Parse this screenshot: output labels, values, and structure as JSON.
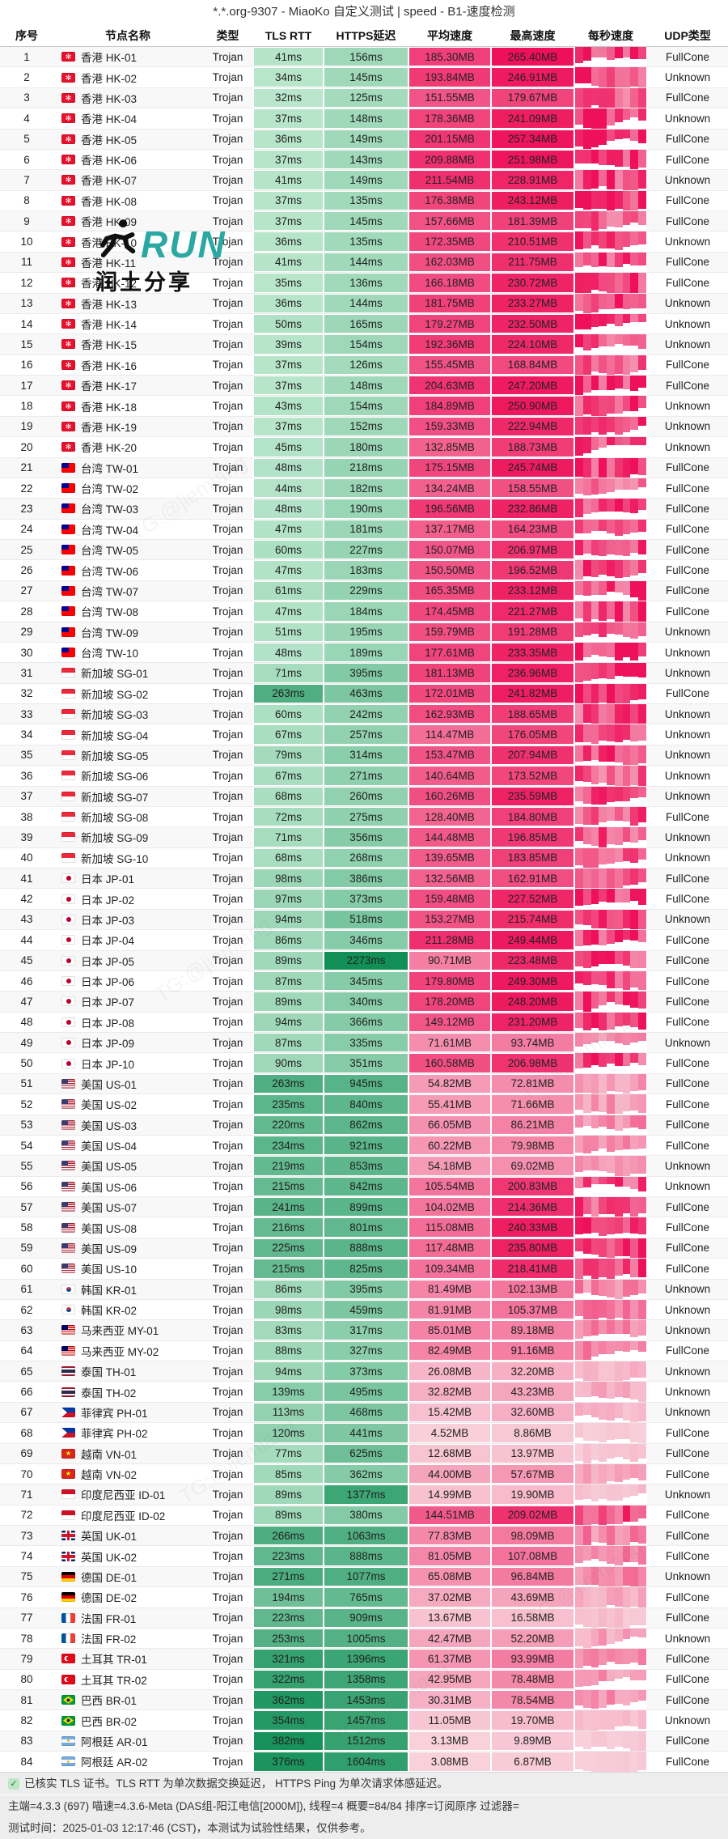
{
  "title": "*.*.org-9307 - MiaoKo 自定义测试 | speed - B1-速度检测",
  "watermark": {
    "run": "RUN",
    "share": "润土分享",
    "diagonal": "TG:@jiemiang"
  },
  "table": {
    "columns": [
      "序号",
      "节点名称",
      "类型",
      "TLS RTT",
      "HTTPS延迟",
      "平均速度",
      "最高速度",
      "每秒速度",
      "UDP类型"
    ],
    "row_fields": [
      "no",
      "flag",
      "name",
      "type",
      "tls",
      "https",
      "avg",
      "max",
      "udp"
    ],
    "rows": [
      [
        1,
        "hk",
        "香港 HK-01",
        "Trojan",
        "41ms",
        "156ms",
        "185.30MB",
        "265.40MB",
        "FullCone"
      ],
      [
        2,
        "hk",
        "香港 HK-02",
        "Trojan",
        "34ms",
        "145ms",
        "193.84MB",
        "246.91MB",
        "Unknown"
      ],
      [
        3,
        "hk",
        "香港 HK-03",
        "Trojan",
        "32ms",
        "125ms",
        "151.55MB",
        "179.67MB",
        "FullCone"
      ],
      [
        4,
        "hk",
        "香港 HK-04",
        "Trojan",
        "37ms",
        "148ms",
        "178.36MB",
        "241.09MB",
        "Unknown"
      ],
      [
        5,
        "hk",
        "香港 HK-05",
        "Trojan",
        "36ms",
        "149ms",
        "201.15MB",
        "257.34MB",
        "FullCone"
      ],
      [
        6,
        "hk",
        "香港 HK-06",
        "Trojan",
        "37ms",
        "143ms",
        "209.88MB",
        "251.98MB",
        "FullCone"
      ],
      [
        7,
        "hk",
        "香港 HK-07",
        "Trojan",
        "41ms",
        "149ms",
        "211.54MB",
        "228.91MB",
        "Unknown"
      ],
      [
        8,
        "hk",
        "香港 HK-08",
        "Trojan",
        "37ms",
        "135ms",
        "176.38MB",
        "243.12MB",
        "FullCone"
      ],
      [
        9,
        "hk",
        "香港 HK-09",
        "Trojan",
        "37ms",
        "145ms",
        "157.66MB",
        "181.39MB",
        "FullCone"
      ],
      [
        10,
        "hk",
        "香港 HK-10",
        "Trojan",
        "36ms",
        "135ms",
        "172.35MB",
        "210.51MB",
        "Unknown"
      ],
      [
        11,
        "hk",
        "香港 HK-11",
        "Trojan",
        "41ms",
        "144ms",
        "162.03MB",
        "211.75MB",
        "FullCone"
      ],
      [
        12,
        "hk",
        "香港 HK-12",
        "Trojan",
        "35ms",
        "136ms",
        "166.18MB",
        "230.72MB",
        "FullCone"
      ],
      [
        13,
        "hk",
        "香港 HK-13",
        "Trojan",
        "36ms",
        "144ms",
        "181.75MB",
        "233.27MB",
        "Unknown"
      ],
      [
        14,
        "hk",
        "香港 HK-14",
        "Trojan",
        "50ms",
        "165ms",
        "179.27MB",
        "232.50MB",
        "Unknown"
      ],
      [
        15,
        "hk",
        "香港 HK-15",
        "Trojan",
        "39ms",
        "154ms",
        "192.36MB",
        "224.10MB",
        "Unknown"
      ],
      [
        16,
        "hk",
        "香港 HK-16",
        "Trojan",
        "37ms",
        "126ms",
        "155.45MB",
        "168.84MB",
        "FullCone"
      ],
      [
        17,
        "hk",
        "香港 HK-17",
        "Trojan",
        "37ms",
        "148ms",
        "204.63MB",
        "247.20MB",
        "FullCone"
      ],
      [
        18,
        "hk",
        "香港 HK-18",
        "Trojan",
        "43ms",
        "154ms",
        "184.89MB",
        "250.90MB",
        "Unknown"
      ],
      [
        19,
        "hk",
        "香港 HK-19",
        "Trojan",
        "37ms",
        "152ms",
        "159.33MB",
        "222.94MB",
        "Unknown"
      ],
      [
        20,
        "hk",
        "香港 HK-20",
        "Trojan",
        "45ms",
        "180ms",
        "132.85MB",
        "188.73MB",
        "Unknown"
      ],
      [
        21,
        "tw",
        "台湾 TW-01",
        "Trojan",
        "48ms",
        "218ms",
        "175.15MB",
        "245.74MB",
        "FullCone"
      ],
      [
        22,
        "tw",
        "台湾 TW-02",
        "Trojan",
        "44ms",
        "182ms",
        "134.24MB",
        "158.55MB",
        "FullCone"
      ],
      [
        23,
        "tw",
        "台湾 TW-03",
        "Trojan",
        "48ms",
        "190ms",
        "196.56MB",
        "232.86MB",
        "FullCone"
      ],
      [
        24,
        "tw",
        "台湾 TW-04",
        "Trojan",
        "47ms",
        "181ms",
        "137.17MB",
        "164.23MB",
        "FullCone"
      ],
      [
        25,
        "tw",
        "台湾 TW-05",
        "Trojan",
        "60ms",
        "227ms",
        "150.07MB",
        "206.97MB",
        "FullCone"
      ],
      [
        26,
        "tw",
        "台湾 TW-06",
        "Trojan",
        "47ms",
        "183ms",
        "150.50MB",
        "196.52MB",
        "FullCone"
      ],
      [
        27,
        "tw",
        "台湾 TW-07",
        "Trojan",
        "61ms",
        "229ms",
        "165.35MB",
        "233.12MB",
        "FullCone"
      ],
      [
        28,
        "tw",
        "台湾 TW-08",
        "Trojan",
        "47ms",
        "184ms",
        "174.45MB",
        "221.27MB",
        "FullCone"
      ],
      [
        29,
        "tw",
        "台湾 TW-09",
        "Trojan",
        "51ms",
        "195ms",
        "159.79MB",
        "191.28MB",
        "Unknown"
      ],
      [
        30,
        "tw",
        "台湾 TW-10",
        "Trojan",
        "48ms",
        "189ms",
        "177.61MB",
        "233.35MB",
        "Unknown"
      ],
      [
        31,
        "sg",
        "新加坡 SG-01",
        "Trojan",
        "71ms",
        "395ms",
        "181.13MB",
        "236.96MB",
        "Unknown"
      ],
      [
        32,
        "sg",
        "新加坡 SG-02",
        "Trojan",
        "263ms",
        "463ms",
        "172.01MB",
        "241.82MB",
        "FullCone"
      ],
      [
        33,
        "sg",
        "新加坡 SG-03",
        "Trojan",
        "60ms",
        "242ms",
        "162.93MB",
        "188.65MB",
        "Unknown"
      ],
      [
        34,
        "sg",
        "新加坡 SG-04",
        "Trojan",
        "67ms",
        "257ms",
        "114.47MB",
        "176.05MB",
        "Unknown"
      ],
      [
        35,
        "sg",
        "新加坡 SG-05",
        "Trojan",
        "79ms",
        "314ms",
        "153.47MB",
        "207.94MB",
        "Unknown"
      ],
      [
        36,
        "sg",
        "新加坡 SG-06",
        "Trojan",
        "67ms",
        "271ms",
        "140.64MB",
        "173.52MB",
        "Unknown"
      ],
      [
        37,
        "sg",
        "新加坡 SG-07",
        "Trojan",
        "68ms",
        "260ms",
        "160.26MB",
        "235.59MB",
        "Unknown"
      ],
      [
        38,
        "sg",
        "新加坡 SG-08",
        "Trojan",
        "72ms",
        "275ms",
        "128.40MB",
        "184.80MB",
        "FullCone"
      ],
      [
        39,
        "sg",
        "新加坡 SG-09",
        "Trojan",
        "71ms",
        "356ms",
        "144.48MB",
        "196.85MB",
        "Unknown"
      ],
      [
        40,
        "sg",
        "新加坡 SG-10",
        "Trojan",
        "68ms",
        "268ms",
        "139.65MB",
        "183.85MB",
        "Unknown"
      ],
      [
        41,
        "jp",
        "日本 JP-01",
        "Trojan",
        "98ms",
        "386ms",
        "132.56MB",
        "162.91MB",
        "FullCone"
      ],
      [
        42,
        "jp",
        "日本 JP-02",
        "Trojan",
        "97ms",
        "373ms",
        "159.48MB",
        "227.52MB",
        "FullCone"
      ],
      [
        43,
        "jp",
        "日本 JP-03",
        "Trojan",
        "94ms",
        "518ms",
        "153.27MB",
        "215.74MB",
        "Unknown"
      ],
      [
        44,
        "jp",
        "日本 JP-04",
        "Trojan",
        "86ms",
        "346ms",
        "211.28MB",
        "249.44MB",
        "FullCone"
      ],
      [
        45,
        "jp",
        "日本 JP-05",
        "Trojan",
        "89ms",
        "2273ms",
        "90.71MB",
        "223.48MB",
        "FullCone"
      ],
      [
        46,
        "jp",
        "日本 JP-06",
        "Trojan",
        "87ms",
        "345ms",
        "179.80MB",
        "249.30MB",
        "FullCone"
      ],
      [
        47,
        "jp",
        "日本 JP-07",
        "Trojan",
        "89ms",
        "340ms",
        "178.20MB",
        "248.20MB",
        "FullCone"
      ],
      [
        48,
        "jp",
        "日本 JP-08",
        "Trojan",
        "94ms",
        "366ms",
        "149.12MB",
        "231.20MB",
        "FullCone"
      ],
      [
        49,
        "jp",
        "日本 JP-09",
        "Trojan",
        "87ms",
        "335ms",
        "71.61MB",
        "93.74MB",
        "Unknown"
      ],
      [
        50,
        "jp",
        "日本 JP-10",
        "Trojan",
        "90ms",
        "351ms",
        "160.58MB",
        "206.98MB",
        "FullCone"
      ],
      [
        51,
        "us",
        "美国 US-01",
        "Trojan",
        "263ms",
        "945ms",
        "54.82MB",
        "72.81MB",
        "FullCone"
      ],
      [
        52,
        "us",
        "美国 US-02",
        "Trojan",
        "235ms",
        "840ms",
        "55.41MB",
        "71.66MB",
        "FullCone"
      ],
      [
        53,
        "us",
        "美国 US-03",
        "Trojan",
        "220ms",
        "862ms",
        "66.05MB",
        "86.21MB",
        "FullCone"
      ],
      [
        54,
        "us",
        "美国 US-04",
        "Trojan",
        "234ms",
        "921ms",
        "60.22MB",
        "79.98MB",
        "FullCone"
      ],
      [
        55,
        "us",
        "美国 US-05",
        "Trojan",
        "219ms",
        "853ms",
        "54.18MB",
        "69.02MB",
        "Unknown"
      ],
      [
        56,
        "us",
        "美国 US-06",
        "Trojan",
        "215ms",
        "842ms",
        "105.54MB",
        "200.83MB",
        "Unknown"
      ],
      [
        57,
        "us",
        "美国 US-07",
        "Trojan",
        "241ms",
        "899ms",
        "104.02MB",
        "214.36MB",
        "FullCone"
      ],
      [
        58,
        "us",
        "美国 US-08",
        "Trojan",
        "216ms",
        "801ms",
        "115.08MB",
        "240.33MB",
        "FullCone"
      ],
      [
        59,
        "us",
        "美国 US-09",
        "Trojan",
        "225ms",
        "888ms",
        "117.48MB",
        "235.80MB",
        "FullCone"
      ],
      [
        60,
        "us",
        "美国 US-10",
        "Trojan",
        "215ms",
        "825ms",
        "109.34MB",
        "218.41MB",
        "FullCone"
      ],
      [
        61,
        "kr",
        "韩国 KR-01",
        "Trojan",
        "86ms",
        "395ms",
        "81.49MB",
        "102.13MB",
        "Unknown"
      ],
      [
        62,
        "kr",
        "韩国 KR-02",
        "Trojan",
        "98ms",
        "459ms",
        "81.91MB",
        "105.37MB",
        "Unknown"
      ],
      [
        63,
        "my",
        "马来西亚 MY-01",
        "Trojan",
        "83ms",
        "317ms",
        "85.01MB",
        "89.18MB",
        "Unknown"
      ],
      [
        64,
        "my",
        "马来西亚 MY-02",
        "Trojan",
        "88ms",
        "327ms",
        "82.49MB",
        "91.16MB",
        "FullCone"
      ],
      [
        65,
        "th",
        "泰国 TH-01",
        "Trojan",
        "94ms",
        "373ms",
        "26.08MB",
        "32.20MB",
        "Unknown"
      ],
      [
        66,
        "th",
        "泰国 TH-02",
        "Trojan",
        "139ms",
        "495ms",
        "32.82MB",
        "43.23MB",
        "Unknown"
      ],
      [
        67,
        "ph",
        "菲律宾 PH-01",
        "Trojan",
        "113ms",
        "468ms",
        "15.42MB",
        "32.60MB",
        "Unknown"
      ],
      [
        68,
        "ph",
        "菲律宾 PH-02",
        "Trojan",
        "120ms",
        "441ms",
        "4.52MB",
        "8.86MB",
        "FullCone"
      ],
      [
        69,
        "vn",
        "越南 VN-01",
        "Trojan",
        "77ms",
        "625ms",
        "12.68MB",
        "13.97MB",
        "FullCone"
      ],
      [
        70,
        "vn",
        "越南 VN-02",
        "Trojan",
        "85ms",
        "362ms",
        "44.00MB",
        "57.67MB",
        "FullCone"
      ],
      [
        71,
        "id",
        "印度尼西亚 ID-01",
        "Trojan",
        "89ms",
        "1377ms",
        "14.99MB",
        "19.90MB",
        "Unknown"
      ],
      [
        72,
        "id",
        "印度尼西亚 ID-02",
        "Trojan",
        "89ms",
        "380ms",
        "144.51MB",
        "209.02MB",
        "FullCone"
      ],
      [
        73,
        "gb",
        "英国 UK-01",
        "Trojan",
        "266ms",
        "1063ms",
        "77.83MB",
        "98.09MB",
        "FullCone"
      ],
      [
        74,
        "gb",
        "英国 UK-02",
        "Trojan",
        "223ms",
        "888ms",
        "81.05MB",
        "107.08MB",
        "FullCone"
      ],
      [
        75,
        "de",
        "德国 DE-01",
        "Trojan",
        "271ms",
        "1077ms",
        "65.08MB",
        "96.84MB",
        "Unknown"
      ],
      [
        76,
        "de",
        "德国 DE-02",
        "Trojan",
        "194ms",
        "765ms",
        "37.02MB",
        "43.69MB",
        "FullCone"
      ],
      [
        77,
        "fr",
        "法国 FR-01",
        "Trojan",
        "223ms",
        "909ms",
        "13.67MB",
        "16.58MB",
        "FullCone"
      ],
      [
        78,
        "fr",
        "法国 FR-02",
        "Trojan",
        "253ms",
        "1005ms",
        "42.47MB",
        "52.20MB",
        "Unknown"
      ],
      [
        79,
        "tr",
        "土耳其 TR-01",
        "Trojan",
        "321ms",
        "1396ms",
        "61.37MB",
        "93.99MB",
        "FullCone"
      ],
      [
        80,
        "tr",
        "土耳其 TR-02",
        "Trojan",
        "322ms",
        "1358ms",
        "42.95MB",
        "78.48MB",
        "FullCone"
      ],
      [
        81,
        "br",
        "巴西 BR-01",
        "Trojan",
        "362ms",
        "1453ms",
        "30.31MB",
        "78.54MB",
        "FullCone"
      ],
      [
        82,
        "br",
        "巴西 BR-02",
        "Trojan",
        "354ms",
        "1457ms",
        "11.05MB",
        "19.70MB",
        "Unknown"
      ],
      [
        83,
        "ar",
        "阿根廷 AR-01",
        "Trojan",
        "382ms",
        "1512ms",
        "3.13MB",
        "9.89MB",
        "FullCone"
      ],
      [
        84,
        "ar",
        "阿根廷 AR-02",
        "Trojan",
        "376ms",
        "1604ms",
        "3.08MB",
        "6.87MB",
        "FullCone"
      ]
    ]
  },
  "footer": {
    "line1": "已核实 TLS 证书。TLS RTT 为单次数据交换延迟， HTTPS Ping 为单次请求体感延迟。",
    "line2": "主端=4.3.3 (697) 喵速=4.3.6-Meta (DAS组-阳江电信[2000M]), 线程=4 概要=84/84 排序=订阅原序 过滤器=",
    "line3": "测试时间：2025-01-03 12:17:46 (CST)，本测试为试验性结果，仅供参考。"
  },
  "colors": {
    "green_light": "#c8eed6",
    "green_dark": "#108e56",
    "pink_light": "#f8d8e0",
    "pink_dark": "#ee105a",
    "accent_teal": "#2ba8a2"
  }
}
